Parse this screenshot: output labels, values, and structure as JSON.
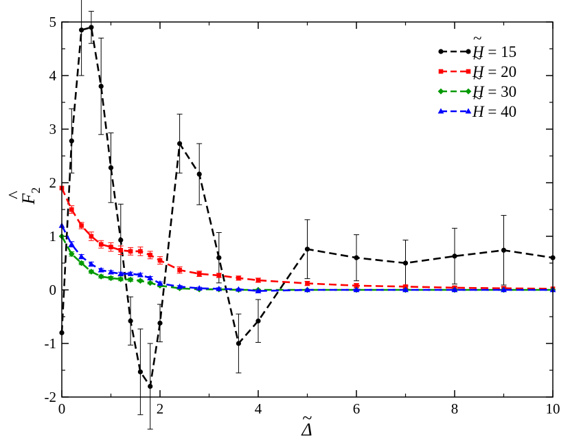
{
  "chart_data": {
    "type": "line",
    "title": "",
    "xlabel": "Δ",
    "ylabel": "F",
    "ylabel_subscript": "2",
    "xlim": [
      0,
      10
    ],
    "ylim": [
      -2,
      5
    ],
    "x_ticks": [
      0,
      2,
      4,
      6,
      8,
      10
    ],
    "y_ticks": [
      -2,
      -1,
      0,
      1,
      2,
      3,
      4,
      5
    ],
    "x_tick_labels": [
      "0",
      "2",
      "4",
      "6",
      "8",
      "10"
    ],
    "y_tick_labels": [
      "-2",
      "-1",
      "0",
      "1",
      "2",
      "3",
      "4",
      "5"
    ],
    "grid": false,
    "legend_position": "top-right",
    "series": [
      {
        "name": "H = 15",
        "legend_var": "H",
        "legend_rest": " = 15",
        "color": "#000000",
        "marker": "circle",
        "x": [
          0,
          0.2,
          0.4,
          0.6,
          0.8,
          1.0,
          1.2,
          1.4,
          1.6,
          1.8,
          2.0,
          2.4,
          2.8,
          3.2,
          3.6,
          4.0,
          5,
          6,
          7,
          8,
          9,
          10
        ],
        "y": [
          -0.8,
          2.78,
          4.85,
          4.9,
          3.8,
          2.28,
          0.93,
          -0.58,
          -1.53,
          -1.8,
          -0.62,
          2.73,
          2.16,
          0.6,
          -1.0,
          -0.58,
          0.76,
          0.6,
          0.5,
          0.63,
          0.74,
          0.6
        ],
        "err": [
          0,
          0.6,
          0.85,
          0.3,
          0.9,
          0.65,
          0.67,
          0.45,
          0.8,
          0.8,
          0.35,
          0.55,
          0.57,
          0.47,
          0.55,
          0.4,
          0.55,
          0.43,
          0.43,
          0.52,
          0.65,
          0
        ]
      },
      {
        "name": "H = 20",
        "legend_var": "H",
        "legend_rest": " = 20",
        "color": "#ff0000",
        "marker": "square",
        "x": [
          0,
          0.2,
          0.4,
          0.6,
          0.8,
          1.0,
          1.2,
          1.4,
          1.6,
          1.8,
          2.0,
          2.4,
          2.8,
          3.2,
          3.6,
          4.0,
          5,
          6,
          7,
          8,
          9,
          10
        ],
        "y": [
          1.9,
          1.5,
          1.2,
          1.0,
          0.85,
          0.8,
          0.74,
          0.72,
          0.72,
          0.65,
          0.55,
          0.37,
          0.3,
          0.27,
          0.22,
          0.18,
          0.12,
          0.08,
          0.06,
          0.04,
          0.03,
          0.02
        ],
        "err": [
          0,
          0.07,
          0.06,
          0.08,
          0.07,
          0.08,
          0.08,
          0.07,
          0.08,
          0.07,
          0.07,
          0.06,
          0.05,
          0.04,
          0.04,
          0.04,
          0.04,
          0.04,
          0.03,
          0.03,
          0.03,
          0
        ]
      },
      {
        "name": "H = 30",
        "legend_var": "H",
        "legend_rest": " = 30",
        "color": "#009900",
        "marker": "diamond",
        "x": [
          0,
          0.2,
          0.4,
          0.6,
          0.8,
          1.0,
          1.2,
          1.4,
          1.6,
          1.8,
          2.0,
          2.4,
          2.8,
          3.2,
          3.6,
          4.0,
          5,
          6,
          7,
          8,
          9,
          10
        ],
        "y": [
          1.0,
          0.67,
          0.5,
          0.34,
          0.25,
          0.22,
          0.2,
          0.19,
          0.17,
          0.13,
          0.08,
          0.03,
          0.01,
          0.01,
          0.0,
          0.0,
          0.0,
          0.0,
          0.0,
          0.0,
          0.0,
          0.0
        ],
        "err": [
          0,
          0.04,
          0.03,
          0.03,
          0.03,
          0.03,
          0.03,
          0.03,
          0.02,
          0.02,
          0.02,
          0.02,
          0.01,
          0.01,
          0.01,
          0.01,
          0.01,
          0.01,
          0.01,
          0.01,
          0.01,
          0
        ]
      },
      {
        "name": "H = 40",
        "legend_var": "H",
        "legend_rest": " = 40",
        "color": "#0000ff",
        "marker": "triangle",
        "x": [
          0,
          0.2,
          0.4,
          0.6,
          0.8,
          1.0,
          1.2,
          1.4,
          1.6,
          1.8,
          2.0,
          2.4,
          2.8,
          3.2,
          3.6,
          4.0,
          5,
          6,
          7,
          8,
          9,
          10
        ],
        "y": [
          1.2,
          0.85,
          0.62,
          0.48,
          0.37,
          0.33,
          0.3,
          0.3,
          0.28,
          0.22,
          0.12,
          0.06,
          0.03,
          0.02,
          0.01,
          -0.02,
          0.0,
          0.0,
          0.0,
          0.0,
          0.0,
          0.0
        ],
        "err": [
          0,
          0.05,
          0.04,
          0.04,
          0.03,
          0.03,
          0.03,
          0.03,
          0.03,
          0.03,
          0.03,
          0.02,
          0.02,
          0.02,
          0.01,
          0.01,
          0.01,
          0.01,
          0.01,
          0.01,
          0.01,
          0
        ]
      }
    ]
  }
}
